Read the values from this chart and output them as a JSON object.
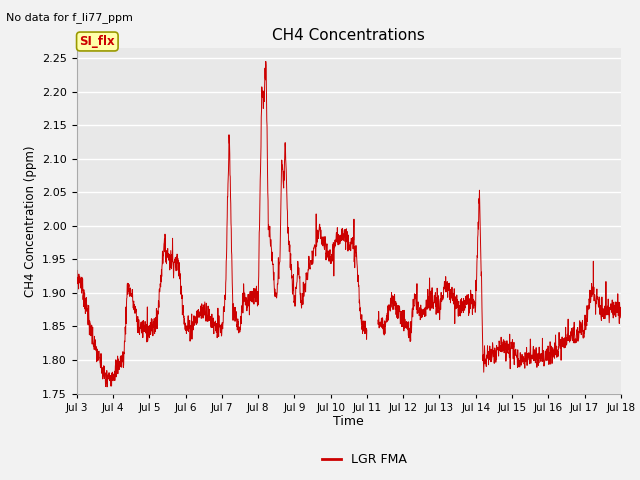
{
  "title": "CH4 Concentrations",
  "ylabel": "CH4 Concentration (ppm)",
  "xlabel": "Time",
  "no_data_label": "No data for f_li77_ppm",
  "si_flx_label": "SI_flx",
  "legend_label": "LGR FMA",
  "ylim": [
    1.75,
    2.265
  ],
  "yticks": [
    1.75,
    1.8,
    1.85,
    1.9,
    1.95,
    2.0,
    2.05,
    2.1,
    2.15,
    2.2,
    2.25
  ],
  "xtick_labels": [
    "Jul 3",
    "Jul 4",
    "Jul 5",
    "Jul 6",
    "Jul 7",
    "Jul 8",
    "Jul 9",
    "Jul 10",
    "Jul 11",
    "Jul 12",
    "Jul 13",
    "Jul 14",
    "Jul 15",
    "Jul 16",
    "Jul 17",
    "Jul 18"
  ],
  "line_color": "#cc0000",
  "bg_color": "#e8e8e8",
  "fig_bg_color": "#f2f2f2",
  "grid_color": "#ffffff",
  "si_flx_bg": "#ffffaa",
  "si_flx_text": "#cc0000",
  "si_flx_border": "#999900"
}
